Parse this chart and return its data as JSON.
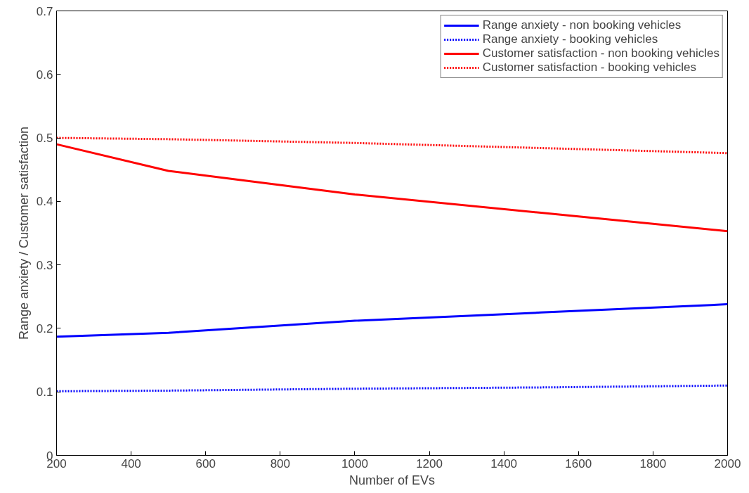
{
  "chart_data": {
    "type": "line",
    "xlabel": "Number of EVs",
    "ylabel": "Range anxiety / Customer satisfaction",
    "x": [
      200,
      500,
      1000,
      1500,
      2000
    ],
    "xlim": [
      200,
      2000
    ],
    "xticks": [
      200,
      400,
      600,
      800,
      1000,
      1200,
      1400,
      1600,
      1800,
      2000
    ],
    "ylim": [
      0,
      0.7
    ],
    "yticks": [
      0,
      0.1,
      0.2,
      0.3,
      0.4,
      0.5,
      0.6,
      0.7
    ],
    "grid": false,
    "legend": "top right",
    "series": [
      {
        "name": "Range anxiety - non booking vehicles",
        "color": "#0000ff",
        "line_style": "solid",
        "values": [
          0.187,
          0.193,
          0.212,
          0.225,
          0.238
        ]
      },
      {
        "name": "Range anxiety - booking vehicles",
        "color": "#0000ff",
        "line_style": "dotted",
        "values": [
          0.101,
          0.102,
          0.105,
          0.107,
          0.11
        ]
      },
      {
        "name": "Customer satisfaction - non booking vehicles",
        "color": "#ff0000",
        "line_style": "solid",
        "values": [
          0.49,
          0.448,
          0.411,
          0.382,
          0.353
        ]
      },
      {
        "name": "Customer satisfaction - booking vehicles",
        "color": "#ff0000",
        "line_style": "dotted",
        "values": [
          0.5,
          0.498,
          0.492,
          0.484,
          0.476
        ]
      }
    ]
  }
}
